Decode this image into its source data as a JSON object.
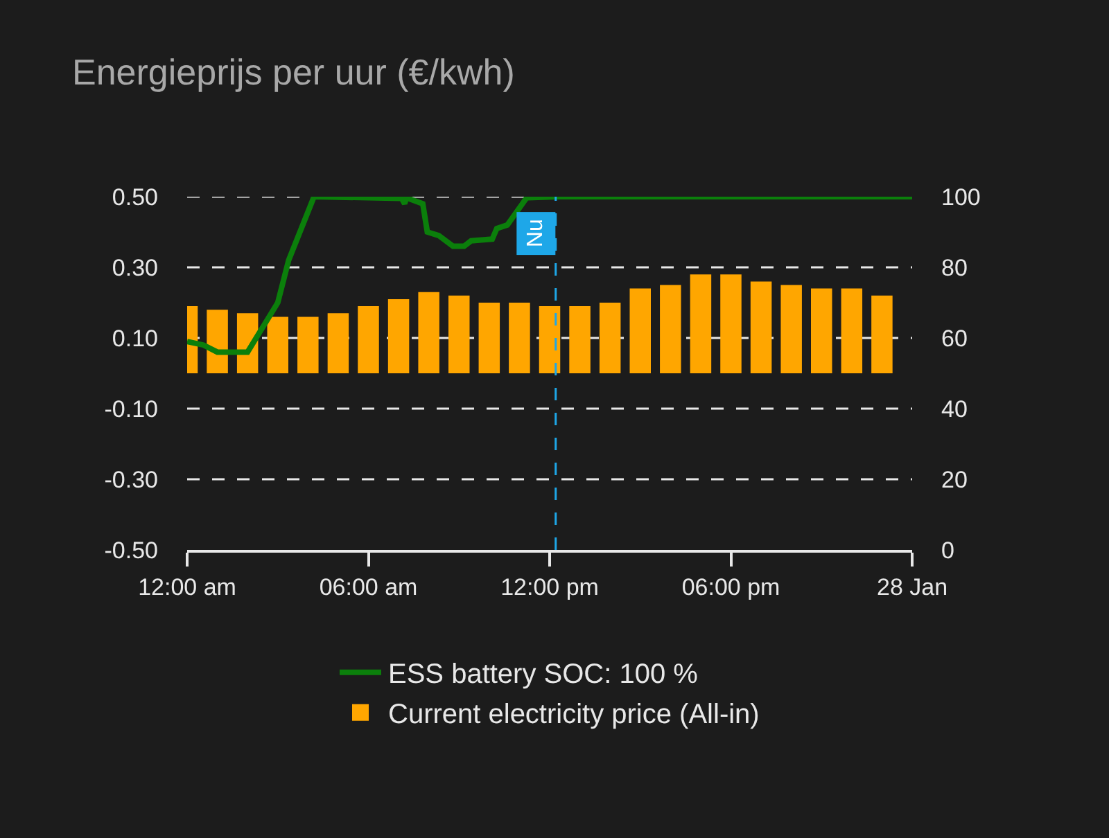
{
  "chart_data": {
    "type": "bar",
    "title": "Energieprijs per uur (€/kwh)",
    "xlim": [
      0,
      24
    ],
    "xticks": [
      {
        "value": 0,
        "label": "12:00 am"
      },
      {
        "value": 6,
        "label": "06:00 am"
      },
      {
        "value": 12,
        "label": "12:00 pm"
      },
      {
        "value": 18,
        "label": "06:00 pm"
      },
      {
        "value": 24,
        "label": "28 Jan"
      }
    ],
    "ylim": [
      -0.5,
      0.5
    ],
    "yticks": [
      {
        "value": -0.5,
        "label": "-0.50"
      },
      {
        "value": -0.3,
        "label": "-0.30"
      },
      {
        "value": -0.1,
        "label": "-0.10"
      },
      {
        "value": 0.1,
        "label": "0.10"
      },
      {
        "value": 0.3,
        "label": "0.30"
      },
      {
        "value": 0.5,
        "label": "0.50"
      }
    ],
    "y2lim": [
      0,
      100
    ],
    "y2ticks": [
      0,
      20,
      40,
      60,
      80,
      100
    ],
    "grid": "y",
    "legend": "bottom",
    "series": [
      {
        "name": "ESS battery SOC: 100 %",
        "type": "line",
        "axis": "y2",
        "color": "#0b7f0b",
        "x": [
          0,
          0.54,
          1.0,
          2.0,
          3.0,
          3.36,
          4.2,
          7.1,
          7.2,
          7.26,
          7.8,
          7.95,
          8.33,
          8.8,
          9.17,
          9.4,
          10.1,
          10.25,
          10.6,
          11.24,
          12.3,
          24
        ],
        "values": [
          59,
          58,
          56,
          56,
          70,
          82,
          100,
          99.5,
          98,
          99.7,
          98,
          90,
          89,
          86,
          86,
          87.5,
          88,
          91,
          92,
          99.7,
          100,
          100
        ]
      },
      {
        "name": "Current electricity price (All-in)",
        "color": "#ffa600",
        "x": [
          0,
          1,
          2,
          3,
          4,
          5,
          6,
          7,
          8,
          9,
          10,
          11,
          12,
          13,
          14,
          15,
          16,
          17,
          18,
          19,
          20,
          21,
          22,
          23
        ],
        "values": [
          0.19,
          0.18,
          0.17,
          0.16,
          0.16,
          0.17,
          0.19,
          0.21,
          0.23,
          0.22,
          0.2,
          0.2,
          0.19,
          0.19,
          0.2,
          0.24,
          0.25,
          0.28,
          0.28,
          0.26,
          0.25,
          0.24,
          0.24,
          0.22
        ]
      }
    ],
    "ref_lines": [
      {
        "axis": "x",
        "value": 12.2,
        "label": "Nu",
        "color": "#1ea7e8",
        "line_style": "dashed"
      }
    ]
  }
}
